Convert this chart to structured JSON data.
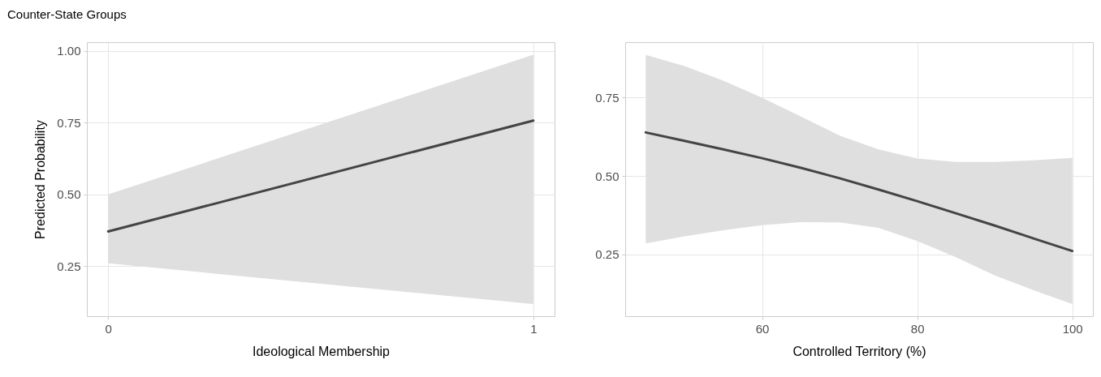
{
  "chart_data": [
    {
      "type": "line",
      "title": "Counter-State Groups",
      "xlabel": "Ideological Membership",
      "ylabel": "Predicted Probability",
      "x": [
        0,
        1
      ],
      "series": [
        {
          "color": "#444444",
          "values": [
            0.371,
            0.757
          ],
          "lower": [
            0.26,
            0.118
          ],
          "upper": [
            0.5,
            0.986
          ]
        }
      ],
      "xlim": [
        -0.05,
        1.05
      ],
      "ylim": [
        0.076,
        1.03
      ],
      "xticks": [
        0,
        1
      ],
      "yticks": [
        {
          "value": 0.25,
          "label": "0.25"
        },
        {
          "value": 0.5,
          "label": "0.50"
        },
        {
          "value": 0.75,
          "label": "0.75"
        },
        {
          "value": 1,
          "label": "1.00"
        }
      ],
      "grid": true
    },
    {
      "type": "line",
      "xlabel": "Controlled Territory (%)",
      "x": [
        45,
        50,
        55,
        60,
        65,
        70,
        75,
        80,
        85,
        90,
        95,
        100
      ],
      "series": [
        {
          "color": "#444444",
          "values": [
            0.639,
            0.612,
            0.585,
            0.557,
            0.526,
            0.493,
            0.457,
            0.42,
            0.381,
            0.342,
            0.301,
            0.261
          ],
          "lower": [
            0.285,
            0.308,
            0.327,
            0.343,
            0.353,
            0.352,
            0.335,
            0.293,
            0.241,
            0.183,
            0.136,
            0.092
          ],
          "upper": [
            0.886,
            0.851,
            0.804,
            0.75,
            0.69,
            0.629,
            0.585,
            0.556,
            0.545,
            0.545,
            0.55,
            0.558
          ]
        }
      ],
      "xlim": [
        42.35,
        102.65
      ],
      "ylim": [
        0.053,
        0.927
      ],
      "xticks": [
        60,
        80,
        100
      ],
      "yticks": [
        {
          "value": 0.25,
          "label": "0.25"
        },
        {
          "value": 0.5,
          "label": "0.50"
        },
        {
          "value": 0.75,
          "label": "0.75"
        }
      ],
      "grid": true
    }
  ]
}
